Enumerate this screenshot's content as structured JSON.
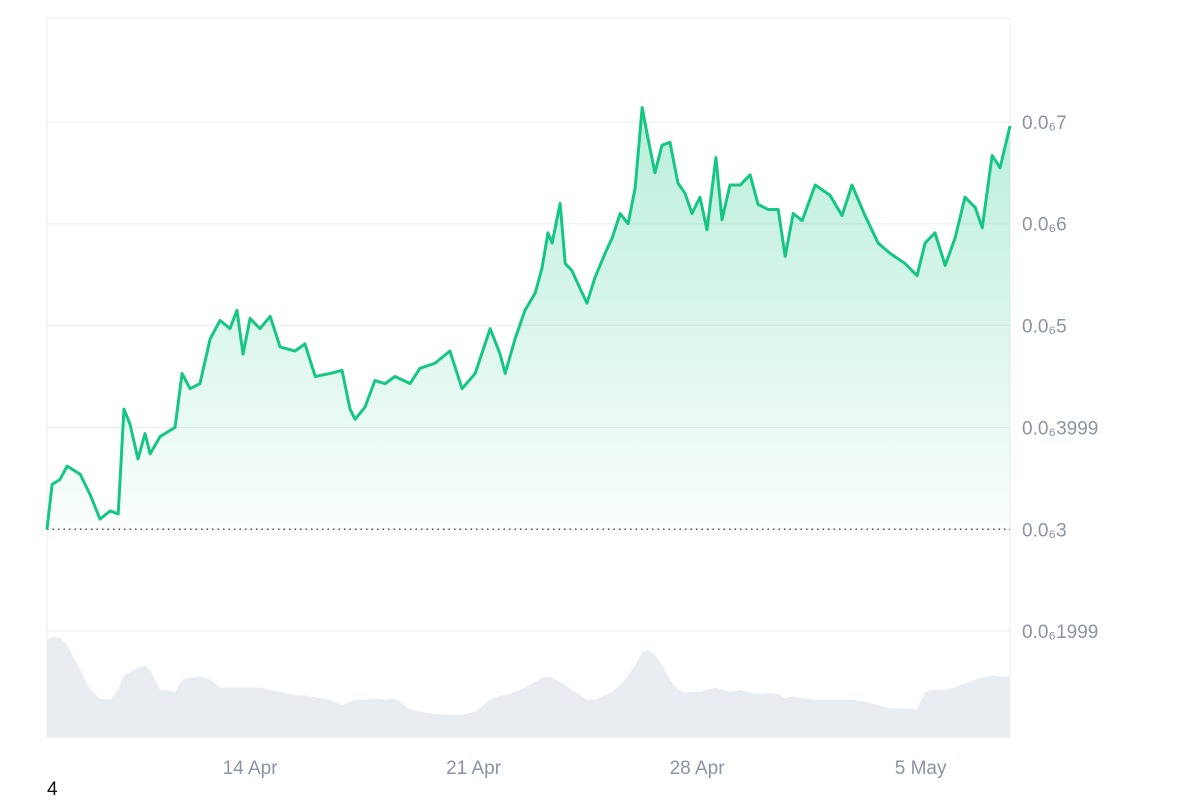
{
  "chart_data": {
    "type": "line",
    "x": [
      7.64,
      7.8,
      8.05,
      8.27,
      8.68,
      8.99,
      9.3,
      9.62,
      9.87,
      10.05,
      10.24,
      10.49,
      10.71,
      10.87,
      11.18,
      11.65,
      11.87,
      12.12,
      12.43,
      12.75,
      13.06,
      13.37,
      13.59,
      13.78,
      14.0,
      14.31,
      14.63,
      14.94,
      15.41,
      15.72,
      16.04,
      16.51,
      16.88,
      17.13,
      17.29,
      17.6,
      17.91,
      18.23,
      18.54,
      19.01,
      19.32,
      19.79,
      20.26,
      20.64,
      21.05,
      21.52,
      21.83,
      21.99,
      22.3,
      22.61,
      22.93,
      23.14,
      23.33,
      23.46,
      23.71,
      23.87,
      24.08,
      24.34,
      24.55,
      24.8,
      25.12,
      25.34,
      25.59,
      25.84,
      26.06,
      26.28,
      26.46,
      26.68,
      26.9,
      27.15,
      27.4,
      27.62,
      27.84,
      28.09,
      28.31,
      28.59,
      28.78,
      29.03,
      29.35,
      29.66,
      29.91,
      30.22,
      30.54,
      30.76,
      31.01,
      31.29,
      31.7,
      32.16,
      32.54,
      32.85,
      33.26,
      33.67,
      34.04,
      34.51,
      34.89,
      35.14,
      35.45,
      35.77,
      36.08,
      36.39,
      36.71,
      36.93,
      37.24,
      37.49,
      37.8
    ],
    "series": [
      {
        "color": "#16c784",
        "values": [
          3e-08,
          3.44e-08,
          3.49e-08,
          3.62e-08,
          3.54e-08,
          3.34e-08,
          3.1e-08,
          3.18e-08,
          3.15e-08,
          4.18e-08,
          4.03e-08,
          3.69e-08,
          3.94e-08,
          3.74e-08,
          3.91e-08,
          4e-08,
          4.53e-08,
          4.38e-08,
          4.43e-08,
          4.87e-08,
          5.05e-08,
          4.97e-08,
          5.15e-08,
          4.72e-08,
          5.07e-08,
          4.97e-08,
          5.09e-08,
          4.79e-08,
          4.75e-08,
          4.82e-08,
          4.5e-08,
          4.53e-08,
          4.56e-08,
          4.18e-08,
          4.08e-08,
          4.2e-08,
          4.46e-08,
          4.43e-08,
          4.5e-08,
          4.43e-08,
          4.58e-08,
          4.63e-08,
          4.75e-08,
          4.38e-08,
          4.53e-08,
          4.97e-08,
          4.72e-08,
          4.53e-08,
          4.87e-08,
          5.15e-08,
          5.32e-08,
          5.56e-08,
          5.91e-08,
          5.81e-08,
          6.2e-08,
          5.61e-08,
          5.54e-08,
          5.36e-08,
          5.22e-08,
          5.47e-08,
          5.71e-08,
          5.86e-08,
          6.1e-08,
          6e-08,
          6.35e-08,
          7.14e-08,
          6.84e-08,
          6.5e-08,
          6.77e-08,
          6.8e-08,
          6.4e-08,
          6.3e-08,
          6.1e-08,
          6.26e-08,
          5.94e-08,
          6.65e-08,
          6.04e-08,
          6.38e-08,
          6.38e-08,
          6.48e-08,
          6.19e-08,
          6.14e-08,
          6.14e-08,
          5.68e-08,
          6.1e-08,
          6.03e-08,
          6.38e-08,
          6.28e-08,
          6.08e-08,
          6.38e-08,
          6.08e-08,
          5.81e-08,
          5.71e-08,
          5.61e-08,
          5.49e-08,
          5.81e-08,
          5.91e-08,
          5.59e-08,
          5.86e-08,
          6.26e-08,
          6.16e-08,
          5.96e-08,
          6.67e-08,
          6.55e-08,
          6.96e-08
        ]
      },
      {
        "type": "area",
        "color": "#e9ecf0",
        "ylim": [
          0,
          100
        ],
        "values": [
          88,
          91,
          90,
          84,
          61,
          43,
          35,
          34,
          43,
          56,
          59,
          63,
          65,
          61,
          43,
          41,
          52,
          54,
          55,
          52,
          45,
          45,
          45,
          45,
          45,
          45,
          43,
          41,
          38,
          38,
          36,
          34,
          29,
          32,
          34,
          34,
          35,
          34,
          35,
          25,
          23,
          21,
          20,
          20,
          23,
          34,
          38,
          38,
          41,
          45,
          50,
          54,
          55,
          54,
          50,
          47,
          43,
          38,
          34,
          34,
          38,
          41,
          47,
          56,
          65,
          77,
          79,
          75,
          65,
          52,
          43,
          40,
          41,
          41,
          43,
          45,
          43,
          41,
          43,
          40,
          39,
          40,
          39,
          35,
          37,
          35,
          34,
          34,
          34,
          34,
          32,
          29,
          26,
          26,
          25,
          41,
          43,
          43,
          45,
          49,
          52,
          54,
          56,
          55,
          55
        ]
      }
    ],
    "xlim": [
      7.64,
      37.8
    ],
    "xticks": [
      {
        "value": 14,
        "label": "14 Apr"
      },
      {
        "value": 21,
        "label": "21 Apr"
      },
      {
        "value": 28,
        "label": "28 Apr"
      },
      {
        "value": 35,
        "label": "5 May"
      }
    ],
    "ylim": [
      9.6e-09,
      8.02e-08
    ],
    "yticks": [
      {
        "value": 7e-08,
        "label": "0.0₆7"
      },
      {
        "value": 6e-08,
        "label": "0.0₆6"
      },
      {
        "value": 5e-08,
        "label": "0.0₆5"
      },
      {
        "value": 3.999e-08,
        "label": "0.0₆3999"
      },
      {
        "value": 3e-08,
        "label": "0.0₆3"
      },
      {
        "value": 1.999e-08,
        "label": "0.0₆1999"
      }
    ],
    "grid": true,
    "footer": "4"
  }
}
